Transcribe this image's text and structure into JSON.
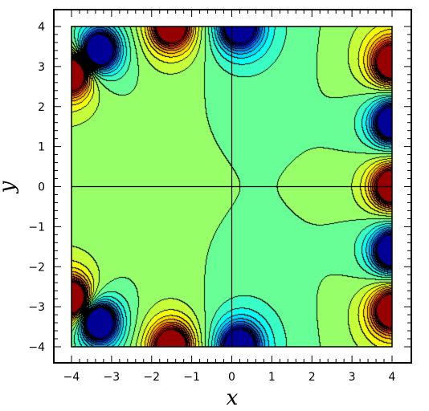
{
  "chart_data": {
    "type": "heatmap",
    "subtype": "filled-contour",
    "title": "",
    "xlabel": "x",
    "ylabel": "y",
    "xlim": [
      -4,
      4
    ],
    "ylim": [
      -4,
      4
    ],
    "xticks": [
      -4,
      -3,
      -2,
      -1,
      0,
      1,
      2,
      3,
      4
    ],
    "yticks": [
      -4,
      -3,
      -2,
      -1,
      0,
      1,
      2,
      3,
      4
    ],
    "xtick_labels": [
      "−4",
      "−3",
      "−2",
      "−1",
      "0",
      "1",
      "2",
      "3",
      "4"
    ],
    "ytick_labels": [
      "−4",
      "−3",
      "−2",
      "−1",
      "0",
      "1",
      "2",
      "3",
      "4"
    ],
    "colormap": "jet",
    "contour_line_color": "#000000",
    "guide_lines": [
      "x = 0",
      "y = 0"
    ],
    "grid": false,
    "legend": "none",
    "poles": [
      {
        "x": 4.0,
        "y": 0.0,
        "sign": "positive"
      },
      {
        "x": 4.0,
        "y": 1.6,
        "sign": "negative"
      },
      {
        "x": 4.0,
        "y": -1.6,
        "sign": "negative"
      },
      {
        "x": 4.0,
        "y": 3.1,
        "sign": "positive"
      },
      {
        "x": 4.0,
        "y": -3.1,
        "sign": "positive"
      },
      {
        "x": -3.3,
        "y": 3.4,
        "sign": "negative"
      },
      {
        "x": -3.3,
        "y": -3.4,
        "sign": "negative"
      },
      {
        "x": -1.5,
        "y": 4.0,
        "sign": "positive"
      },
      {
        "x": -1.5,
        "y": -4.0,
        "sign": "positive"
      },
      {
        "x": -4.0,
        "y": 2.8,
        "sign": "positive"
      },
      {
        "x": -4.0,
        "y": -2.8,
        "sign": "positive"
      },
      {
        "x": 0.2,
        "y": 4.0,
        "sign": "negative"
      },
      {
        "x": 0.2,
        "y": -4.0,
        "sign": "negative"
      }
    ]
  }
}
